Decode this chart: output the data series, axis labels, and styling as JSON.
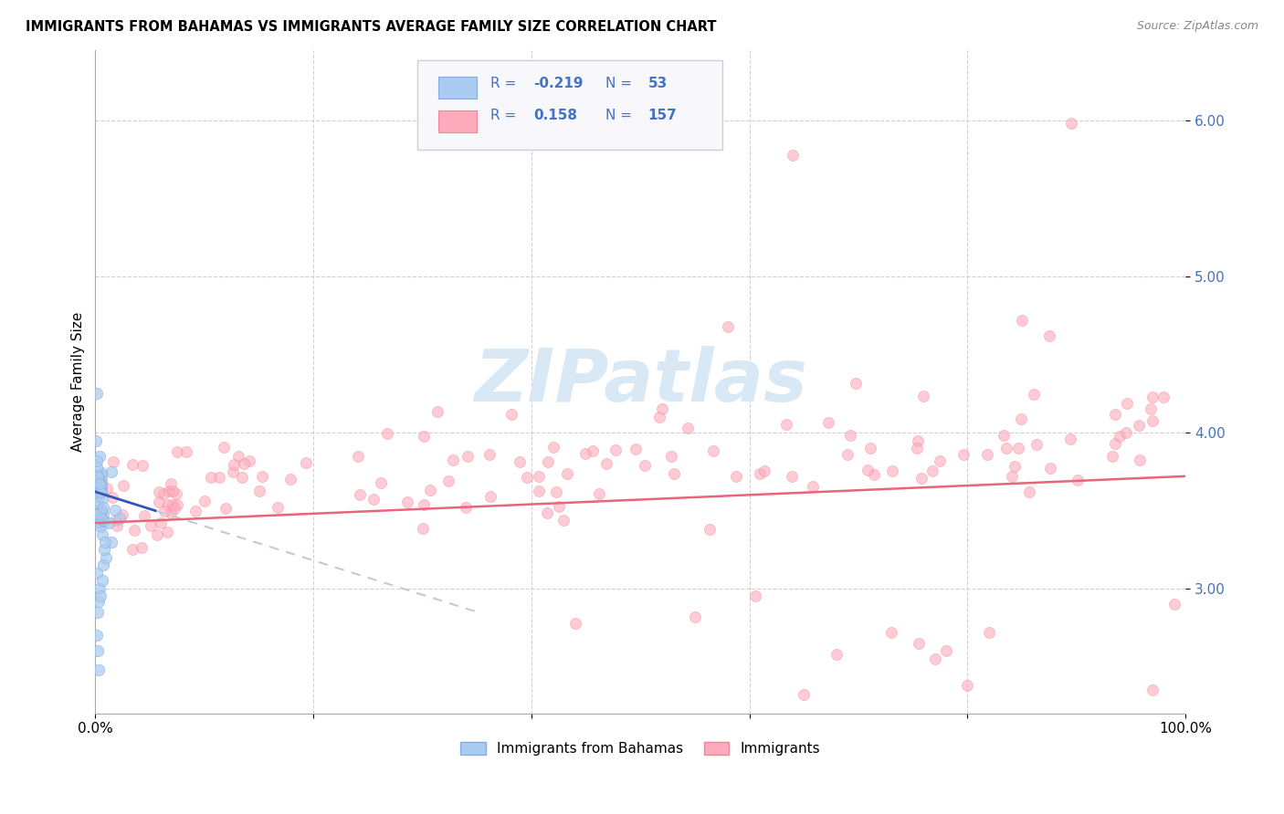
{
  "title": "IMMIGRANTS FROM BAHAMAS VS IMMIGRANTS AVERAGE FAMILY SIZE CORRELATION CHART",
  "source": "Source: ZipAtlas.com",
  "ylabel": "Average Family Size",
  "xmin": 0.0,
  "xmax": 100.0,
  "ymin": 2.2,
  "ymax": 6.45,
  "yticks": [
    3.0,
    4.0,
    5.0,
    6.0
  ],
  "ytick_color": "#4472C4",
  "blue_color": "#AACCF0",
  "blue_edge_color": "#88AADD",
  "pink_color": "#FFAABC",
  "pink_edge_color": "#EE8899",
  "blue_line_color": "#3355BB",
  "blue_dash_color": "#BBCCDD",
  "pink_line_color": "#E8667A",
  "watermark_color": "#D8E8F5",
  "legend_box_color": "#F8F8FC",
  "legend_border_color": "#CCCCDD",
  "legend_text_color": "#4472C4",
  "blue_slope": -0.022,
  "blue_intercept": 3.62,
  "blue_solid_end": 5.5,
  "blue_dash_end": 35.0,
  "pink_slope": 0.003,
  "pink_intercept": 3.42
}
